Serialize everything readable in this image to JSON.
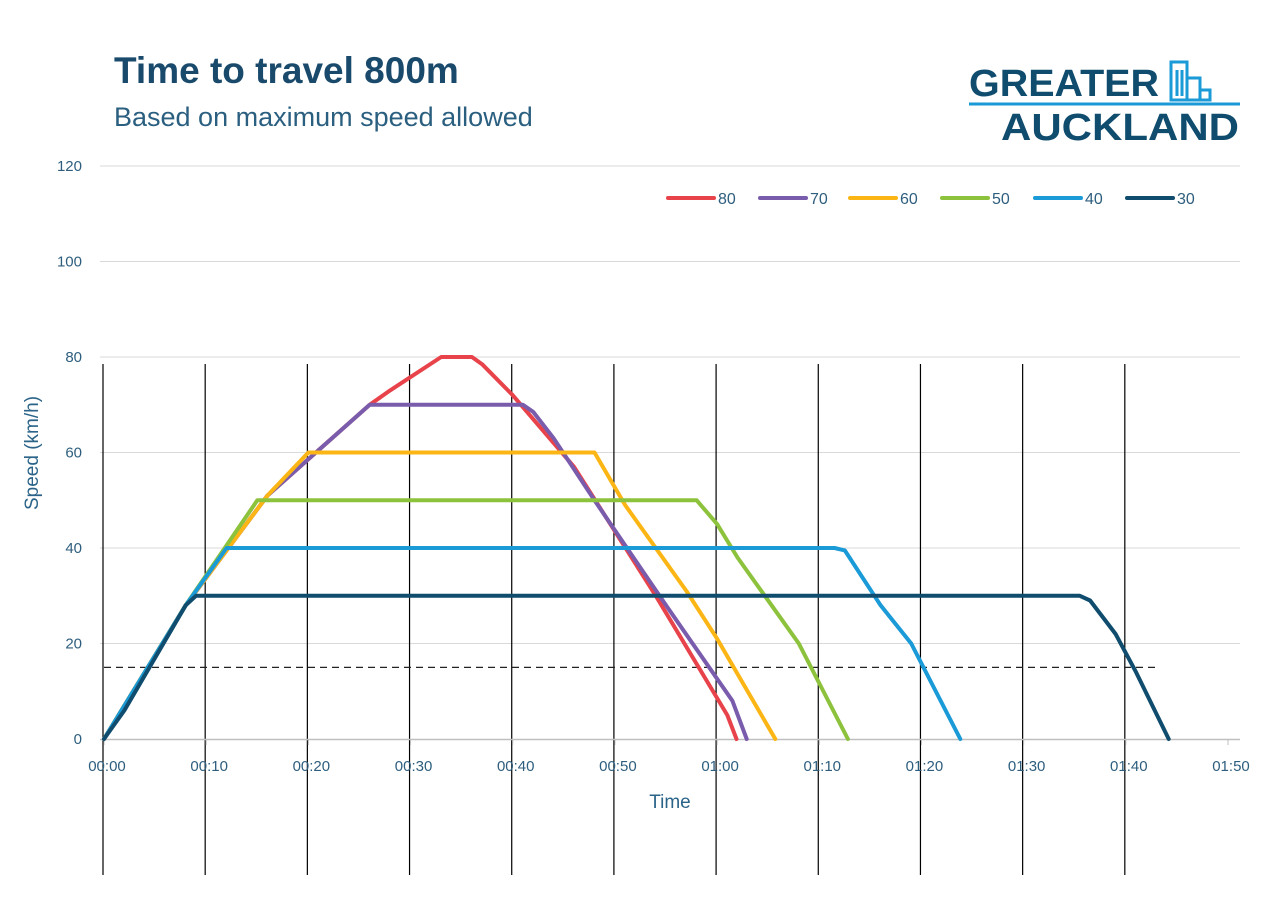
{
  "header": {
    "title": "Time to travel 800m",
    "subtitle": "Based on maximum speed allowed"
  },
  "logo": {
    "line1": "GREATER",
    "line2": "AUCKLAND",
    "icon": "city-buildings-icon"
  },
  "chart_data": {
    "type": "line",
    "title": "Time to travel 800m",
    "subtitle": "Based on maximum speed allowed",
    "xlabel": "Time",
    "ylabel": "Speed (km/h)",
    "xlim": [
      0,
      110
    ],
    "ylim": [
      0,
      120
    ],
    "x_unit": "seconds",
    "x_tick_labels": [
      "00:00",
      "00:10",
      "00:20",
      "00:30",
      "00:40",
      "00:50",
      "01:00",
      "01:10",
      "01:20",
      "01:30",
      "01:40",
      "01:50"
    ],
    "y_tick_labels": [
      "0",
      "20",
      "40",
      "60",
      "80",
      "100",
      "120"
    ],
    "legend_position": "top-right",
    "reference_line": {
      "y": 15,
      "x_range": [
        0,
        103
      ],
      "style": "dashed"
    },
    "series": [
      {
        "name": "80",
        "color": "#e8434b",
        "points": [
          [
            0,
            0
          ],
          [
            8,
            28
          ],
          [
            16,
            51
          ],
          [
            26,
            70
          ],
          [
            28,
            73
          ],
          [
            33,
            80
          ],
          [
            36,
            80
          ],
          [
            37,
            78.5
          ],
          [
            40,
            72
          ],
          [
            46,
            57
          ],
          [
            54,
            30
          ],
          [
            61,
            5
          ],
          [
            61.9,
            0
          ]
        ]
      },
      {
        "name": "70",
        "color": "#7a5cad",
        "points": [
          [
            0,
            0
          ],
          [
            8,
            28
          ],
          [
            16,
            51
          ],
          [
            26,
            70
          ],
          [
            41,
            70
          ],
          [
            42,
            68.5
          ],
          [
            44,
            63
          ],
          [
            48,
            50
          ],
          [
            55,
            28
          ],
          [
            61.5,
            8
          ],
          [
            62.9,
            0
          ]
        ]
      },
      {
        "name": "60",
        "color": "#fbb615",
        "points": [
          [
            0,
            0
          ],
          [
            8,
            28
          ],
          [
            16,
            51
          ],
          [
            20,
            60
          ],
          [
            48,
            60
          ],
          [
            51,
            49
          ],
          [
            57,
            31
          ],
          [
            60,
            21
          ],
          [
            65.7,
            0
          ]
        ]
      },
      {
        "name": "50",
        "color": "#8dc23d",
        "points": [
          [
            0,
            0
          ],
          [
            8,
            28
          ],
          [
            15,
            50
          ],
          [
            58,
            50
          ],
          [
            60,
            45
          ],
          [
            62,
            38
          ],
          [
            68,
            20
          ],
          [
            72.8,
            0
          ]
        ]
      },
      {
        "name": "40",
        "color": "#1a9ad6",
        "points": [
          [
            0,
            0
          ],
          [
            8,
            28
          ],
          [
            12,
            40
          ],
          [
            71.5,
            40
          ],
          [
            72.5,
            39.5
          ],
          [
            76,
            28
          ],
          [
            79,
            20
          ],
          [
            83.8,
            0
          ]
        ]
      },
      {
        "name": "30",
        "color": "#0f4c6e",
        "points": [
          [
            0,
            0
          ],
          [
            2,
            6
          ],
          [
            8,
            28
          ],
          [
            9,
            30
          ],
          [
            95.5,
            30
          ],
          [
            96.5,
            29
          ],
          [
            99,
            22
          ],
          [
            101,
            14
          ],
          [
            104.2,
            0
          ]
        ]
      }
    ]
  }
}
